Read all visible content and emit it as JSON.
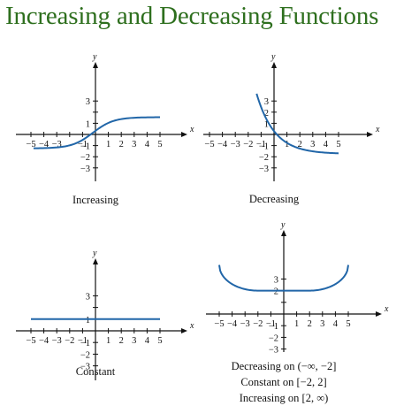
{
  "title": "Increasing and Decreasing Functions",
  "colors": {
    "title": "#2e6f1e",
    "curve": "#2166a8",
    "axis": "#111111"
  },
  "axes": {
    "x_name": "x",
    "y_name": "y"
  },
  "panels": [
    {
      "id": "increasing",
      "x_ticks": [
        "−5",
        "−4",
        "−3",
        "",
        "−1",
        "1",
        "2",
        "3",
        "4",
        "5"
      ],
      "y_ticks_pos": [
        "1",
        "",
        "3"
      ],
      "y_ticks_neg": [
        "−1",
        "−2",
        "−3"
      ],
      "captions": [
        "Increasing"
      ]
    },
    {
      "id": "decreasing",
      "x_ticks": [
        "−5",
        "−4",
        "−3",
        "−2",
        "−1",
        "1",
        "2",
        "3",
        "4",
        "5"
      ],
      "y_ticks_pos": [
        "1",
        "2",
        "3"
      ],
      "y_ticks_neg": [
        "−1",
        "−2",
        "−3"
      ],
      "captions": [
        "Decreasing"
      ]
    },
    {
      "id": "constant",
      "x_ticks": [
        "−5",
        "−4",
        "−3",
        "−2",
        "−1",
        "1",
        "2",
        "3",
        "4",
        "5"
      ],
      "y_ticks_pos": [
        "1",
        "",
        "3"
      ],
      "y_ticks_neg": [
        "−1",
        "−2",
        "−3"
      ],
      "captions": [
        "Constant"
      ]
    },
    {
      "id": "piecewise",
      "x_ticks": [
        "−5",
        "−4",
        "−3",
        "−2",
        "−1",
        "1",
        "2",
        "3",
        "4",
        "5"
      ],
      "y_ticks_pos": [
        "",
        "2",
        "3"
      ],
      "y_ticks_neg": [
        "−1",
        "−2",
        "−3"
      ],
      "captions": [
        "Decreasing on (−∞, −2]",
        "Constant on [−2, 2]",
        "Increasing on [2, ∞)"
      ]
    }
  ]
}
